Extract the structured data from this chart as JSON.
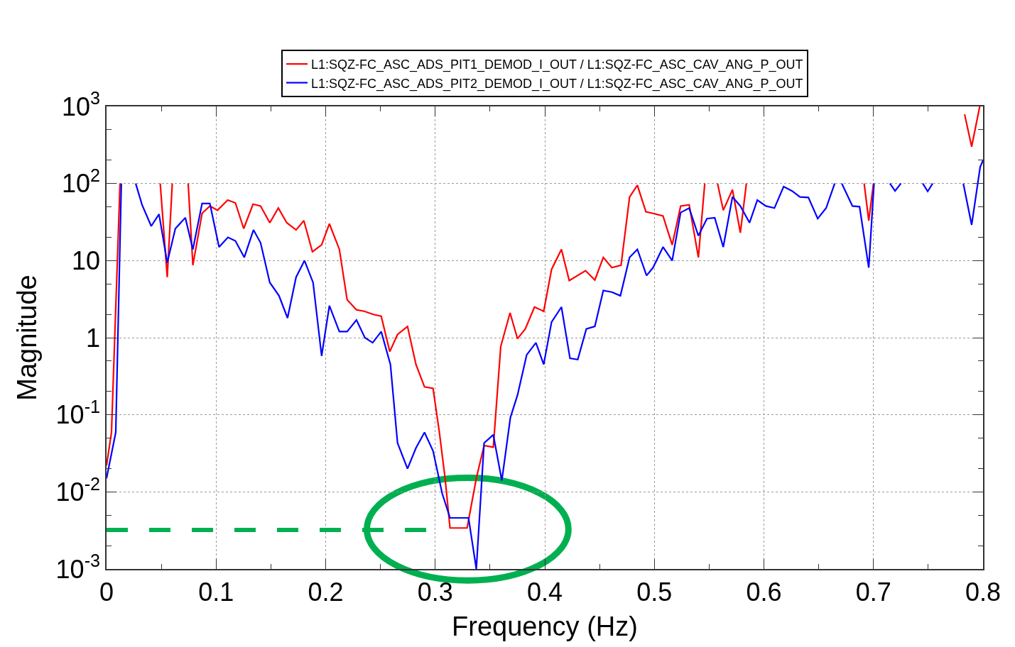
{
  "chart_data": {
    "type": "line",
    "xlabel": "Frequency (Hz)",
    "ylabel": "Magnitude",
    "log": "y",
    "grid": true,
    "legend": "top",
    "marker": "none",
    "line_style": "solid",
    "xlim": [
      0,
      0.8
    ],
    "xticks": [
      0,
      0.1,
      0.2,
      0.3,
      0.4,
      0.5,
      0.6,
      0.7,
      0.8
    ],
    "ylim": [
      0.001,
      1000
    ],
    "yticks": [
      {
        "value": 0.001,
        "label": "10$^{-3}$"
      },
      {
        "value": 0.01,
        "label": "10$^{-2}$"
      },
      {
        "value": 0.1,
        "label": "10$^{-1}$"
      },
      1,
      10,
      {
        "value": 100,
        "label": "10$^{2}$"
      },
      {
        "value": 1000,
        "label": "10$^{3}$"
      }
    ],
    "ref_lines": [
      {
        "axis": "y",
        "value": 0.0032,
        "color": "#00b050",
        "line_style": "dashed"
      }
    ],
    "series": [
      {
        "name": "L1:SQZ-FC_ASC_ADS_PIT1_DEMOD_I_OUT / L1:SQZ-FC_ASC_CAV_ANG_P_OUT",
        "color": "#ff0000",
        "x": [
          0,
          0.0045,
          0.0123,
          0.03,
          0.049,
          0.0554,
          0.06,
          0.067,
          0.0745,
          0.0788,
          0.0872,
          0.0943,
          0.1013,
          0.1106,
          0.1176,
          0.1252,
          0.1337,
          0.1406,
          0.149,
          0.1568,
          0.1645,
          0.173,
          0.1801,
          0.1879,
          0.1963,
          0.2034,
          0.2125,
          0.2196,
          0.2281,
          0.2352,
          0.2436,
          0.2507,
          0.2585,
          0.2656,
          0.2747,
          0.2824,
          0.2902,
          0.298,
          0.3038,
          0.309,
          0.3135,
          0.3291,
          0.3375,
          0.3446,
          0.353,
          0.3598,
          0.3683,
          0.3751,
          0.3822,
          0.3906,
          0.399,
          0.4062,
          0.4152,
          0.4223,
          0.4372,
          0.4457,
          0.4534,
          0.4612,
          0.4696,
          0.4774,
          0.4845,
          0.4923,
          0.4988,
          0.5079,
          0.5163,
          0.524,
          0.5318,
          0.5402,
          0.546,
          0.552,
          0.5577,
          0.5629,
          0.5713,
          0.5785,
          0.584,
          0.64,
          0.6915,
          0.6957,
          0.7,
          0.75,
          0.7832,
          0.7896,
          0.797
        ],
        "values": [
          0.022,
          0.059,
          100,
          null,
          100,
          6.1,
          100,
          null,
          100,
          8.7,
          41,
          51,
          45,
          61,
          56,
          26,
          54,
          51,
          31,
          48,
          31,
          25,
          33,
          13,
          16,
          30,
          14,
          3.1,
          2.3,
          2.2,
          2.0,
          1.9,
          0.66,
          1.1,
          1.4,
          0.45,
          0.23,
          0.22,
          0.059,
          0.015,
          0.0034,
          0.0034,
          0.015,
          0.04,
          0.038,
          0.77,
          2.1,
          0.97,
          1.3,
          2.5,
          2.2,
          7.7,
          14,
          5.5,
          7.4,
          5.6,
          11,
          8.1,
          8.7,
          67,
          95,
          43,
          41,
          38,
          16,
          51,
          53,
          11,
          100,
          null,
          100,
          45,
          83,
          23,
          100,
          null,
          100,
          33,
          100,
          null,
          790,
          300,
          1000
        ]
      },
      {
        "name": "L1:SQZ-FC_ASC_ADS_PIT2_DEMOD_I_OUT / L1:SQZ-FC_ASC_CAV_ANG_P_OUT",
        "color": "#0000ff",
        "x": [
          0,
          0.0084,
          0.0135,
          0.02,
          0.0266,
          0.0324,
          0.0408,
          0.0479,
          0.0554,
          0.0628,
          0.0719,
          0.0788,
          0.0872,
          0.0943,
          0.1027,
          0.1108,
          0.1176,
          0.1257,
          0.1341,
          0.1406,
          0.149,
          0.1574,
          0.1652,
          0.173,
          0.1807,
          0.1885,
          0.1963,
          0.2034,
          0.2125,
          0.2196,
          0.2281,
          0.2358,
          0.2429,
          0.2507,
          0.2591,
          0.2656,
          0.2747,
          0.2824,
          0.2902,
          0.298,
          0.3064,
          0.3135,
          0.3304,
          0.3375,
          0.3446,
          0.353,
          0.3608,
          0.3686,
          0.3751,
          0.3835,
          0.3919,
          0.399,
          0.4062,
          0.4152,
          0.423,
          0.4301,
          0.4379,
          0.4457,
          0.4534,
          0.4612,
          0.469,
          0.4774,
          0.4845,
          0.4929,
          0.4988,
          0.5079,
          0.5163,
          0.524,
          0.5318,
          0.5402,
          0.548,
          0.5551,
          0.5629,
          0.5713,
          0.5785,
          0.5869,
          0.594,
          0.6018,
          0.6096,
          0.618,
          0.6257,
          0.6329,
          0.6406,
          0.6491,
          0.6568,
          0.6646,
          0.668,
          0.6711,
          0.6808,
          0.6873,
          0.6957,
          0.7005,
          0.708,
          0.715,
          0.7197,
          0.725,
          0.735,
          0.745,
          0.7495,
          0.754,
          0.77,
          0.782,
          0.7896,
          0.7974,
          0.8
        ],
        "values": [
          0.015,
          0.059,
          100,
          null,
          100,
          53,
          28,
          40,
          9.4,
          26,
          36,
          14,
          55,
          55,
          15,
          20,
          18,
          11,
          25,
          17,
          5.2,
          3.5,
          1.8,
          6.1,
          10,
          5.2,
          0.58,
          2.6,
          1.2,
          1.2,
          1.7,
          1.0,
          0.86,
          1.2,
          0.45,
          0.043,
          0.02,
          0.037,
          0.059,
          0.034,
          0.0095,
          0.0046,
          0.0046,
          0.001,
          0.043,
          0.055,
          0.014,
          0.092,
          0.18,
          0.6,
          0.86,
          0.45,
          1.6,
          2.5,
          0.54,
          0.52,
          1.3,
          1.4,
          4.1,
          3.9,
          3.5,
          11,
          14,
          6.4,
          8.1,
          15,
          10,
          42,
          48,
          21,
          35,
          36,
          15,
          67,
          51,
          31,
          61,
          51,
          48,
          91,
          80,
          67,
          66,
          35,
          48,
          100,
          null,
          100,
          51,
          50,
          8.1,
          100,
          null,
          100,
          80,
          100,
          null,
          100,
          79,
          100,
          null,
          100,
          29,
          164,
          200
        ]
      }
    ]
  }
}
